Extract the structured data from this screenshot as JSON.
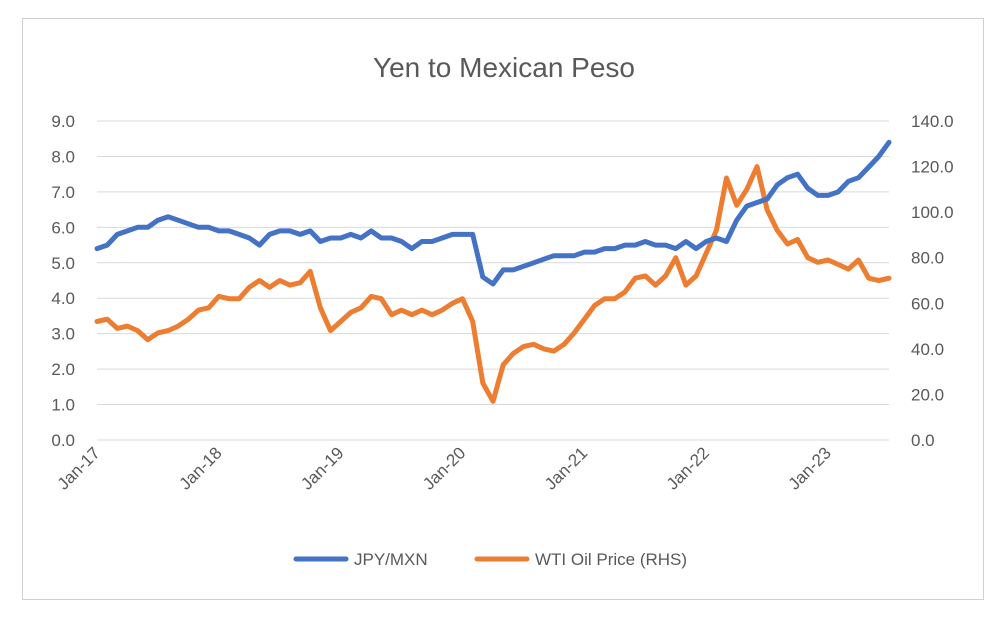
{
  "chart_data": {
    "type": "line",
    "title": "Yen to Mexican Peso",
    "xlabel": "",
    "ylabel": "",
    "y2label": "",
    "x_ticks": [
      "Jan-17",
      "Jan-18",
      "Jan-19",
      "Jan-20",
      "Jan-21",
      "Jan-22",
      "Jan-23"
    ],
    "x_range": [
      "2017-01",
      "2023-07"
    ],
    "y_left": {
      "ticks": [
        "0.0",
        "1.0",
        "2.0",
        "3.0",
        "4.0",
        "5.0",
        "6.0",
        "7.0",
        "8.0",
        "9.0"
      ],
      "ylim": [
        0,
        9
      ]
    },
    "y_right": {
      "ticks": [
        "0.0",
        "20.0",
        "40.0",
        "60.0",
        "80.0",
        "100.0",
        "120.0",
        "140.0"
      ],
      "ylim": [
        0,
        140
      ]
    },
    "grid": true,
    "legend_position": "bottom",
    "series": [
      {
        "name": "JPY/MXN",
        "axis": "left",
        "color": "#4472C4",
        "x": [
          "2017-01",
          "2017-02",
          "2017-03",
          "2017-04",
          "2017-05",
          "2017-06",
          "2017-07",
          "2017-08",
          "2017-09",
          "2017-10",
          "2017-11",
          "2017-12",
          "2018-01",
          "2018-02",
          "2018-03",
          "2018-04",
          "2018-05",
          "2018-06",
          "2018-07",
          "2018-08",
          "2018-09",
          "2018-10",
          "2018-11",
          "2018-12",
          "2019-01",
          "2019-02",
          "2019-03",
          "2019-04",
          "2019-05",
          "2019-06",
          "2019-07",
          "2019-08",
          "2019-09",
          "2019-10",
          "2019-11",
          "2019-12",
          "2020-01",
          "2020-02",
          "2020-03",
          "2020-04",
          "2020-05",
          "2020-06",
          "2020-07",
          "2020-08",
          "2020-09",
          "2020-10",
          "2020-11",
          "2020-12",
          "2021-01",
          "2021-02",
          "2021-03",
          "2021-04",
          "2021-05",
          "2021-06",
          "2021-07",
          "2021-08",
          "2021-09",
          "2021-10",
          "2021-11",
          "2021-12",
          "2022-01",
          "2022-02",
          "2022-03",
          "2022-04",
          "2022-05",
          "2022-06",
          "2022-07",
          "2022-08",
          "2022-09",
          "2022-10",
          "2022-11",
          "2022-12",
          "2023-01",
          "2023-02",
          "2023-03",
          "2023-04",
          "2023-05",
          "2023-06",
          "2023-07"
        ],
        "values": [
          5.4,
          5.5,
          5.8,
          5.9,
          6.0,
          6.0,
          6.2,
          6.3,
          6.2,
          6.1,
          6.0,
          6.0,
          5.9,
          5.9,
          5.8,
          5.7,
          5.5,
          5.8,
          5.9,
          5.9,
          5.8,
          5.9,
          5.6,
          5.7,
          5.7,
          5.8,
          5.7,
          5.9,
          5.7,
          5.7,
          5.6,
          5.4,
          5.6,
          5.6,
          5.7,
          5.8,
          5.8,
          5.8,
          4.6,
          4.4,
          4.8,
          4.8,
          4.9,
          5.0,
          5.1,
          5.2,
          5.2,
          5.2,
          5.3,
          5.3,
          5.4,
          5.4,
          5.5,
          5.5,
          5.6,
          5.5,
          5.5,
          5.4,
          5.6,
          5.4,
          5.6,
          5.7,
          5.6,
          6.2,
          6.6,
          6.7,
          6.8,
          7.2,
          7.4,
          7.5,
          7.1,
          6.9,
          6.9,
          7.0,
          7.3,
          7.4,
          7.7,
          8.0,
          8.4
        ]
      },
      {
        "name": "WTI Oil Price (RHS)",
        "axis": "right",
        "color": "#ED7D31",
        "x": [
          "2017-01",
          "2017-02",
          "2017-03",
          "2017-04",
          "2017-05",
          "2017-06",
          "2017-07",
          "2017-08",
          "2017-09",
          "2017-10",
          "2017-11",
          "2017-12",
          "2018-01",
          "2018-02",
          "2018-03",
          "2018-04",
          "2018-05",
          "2018-06",
          "2018-07",
          "2018-08",
          "2018-09",
          "2018-10",
          "2018-11",
          "2018-12",
          "2019-01",
          "2019-02",
          "2019-03",
          "2019-04",
          "2019-05",
          "2019-06",
          "2019-07",
          "2019-08",
          "2019-09",
          "2019-10",
          "2019-11",
          "2019-12",
          "2020-01",
          "2020-02",
          "2020-03",
          "2020-04",
          "2020-05",
          "2020-06",
          "2020-07",
          "2020-08",
          "2020-09",
          "2020-10",
          "2020-11",
          "2020-12",
          "2021-01",
          "2021-02",
          "2021-03",
          "2021-04",
          "2021-05",
          "2021-06",
          "2021-07",
          "2021-08",
          "2021-09",
          "2021-10",
          "2021-11",
          "2021-12",
          "2022-01",
          "2022-02",
          "2022-03",
          "2022-04",
          "2022-05",
          "2022-06",
          "2022-07",
          "2022-08",
          "2022-09",
          "2022-10",
          "2022-11",
          "2022-12",
          "2023-01",
          "2023-02",
          "2023-03",
          "2023-04",
          "2023-05",
          "2023-06",
          "2023-07"
        ],
        "values": [
          52,
          53,
          49,
          50,
          48,
          44,
          47,
          48,
          50,
          53,
          57,
          58,
          63,
          62,
          62,
          67,
          70,
          67,
          70,
          68,
          69,
          74,
          58,
          48,
          52,
          56,
          58,
          63,
          62,
          55,
          57,
          55,
          57,
          55,
          57,
          60,
          62,
          52,
          25,
          17,
          33,
          38,
          41,
          42,
          40,
          39,
          42,
          47,
          53,
          59,
          62,
          62,
          65,
          71,
          72,
          68,
          72,
          80,
          68,
          72,
          82,
          92,
          115,
          103,
          110,
          120,
          101,
          92,
          86,
          88,
          80,
          78,
          79,
          77,
          75,
          79,
          71,
          70,
          71
        ]
      }
    ]
  }
}
